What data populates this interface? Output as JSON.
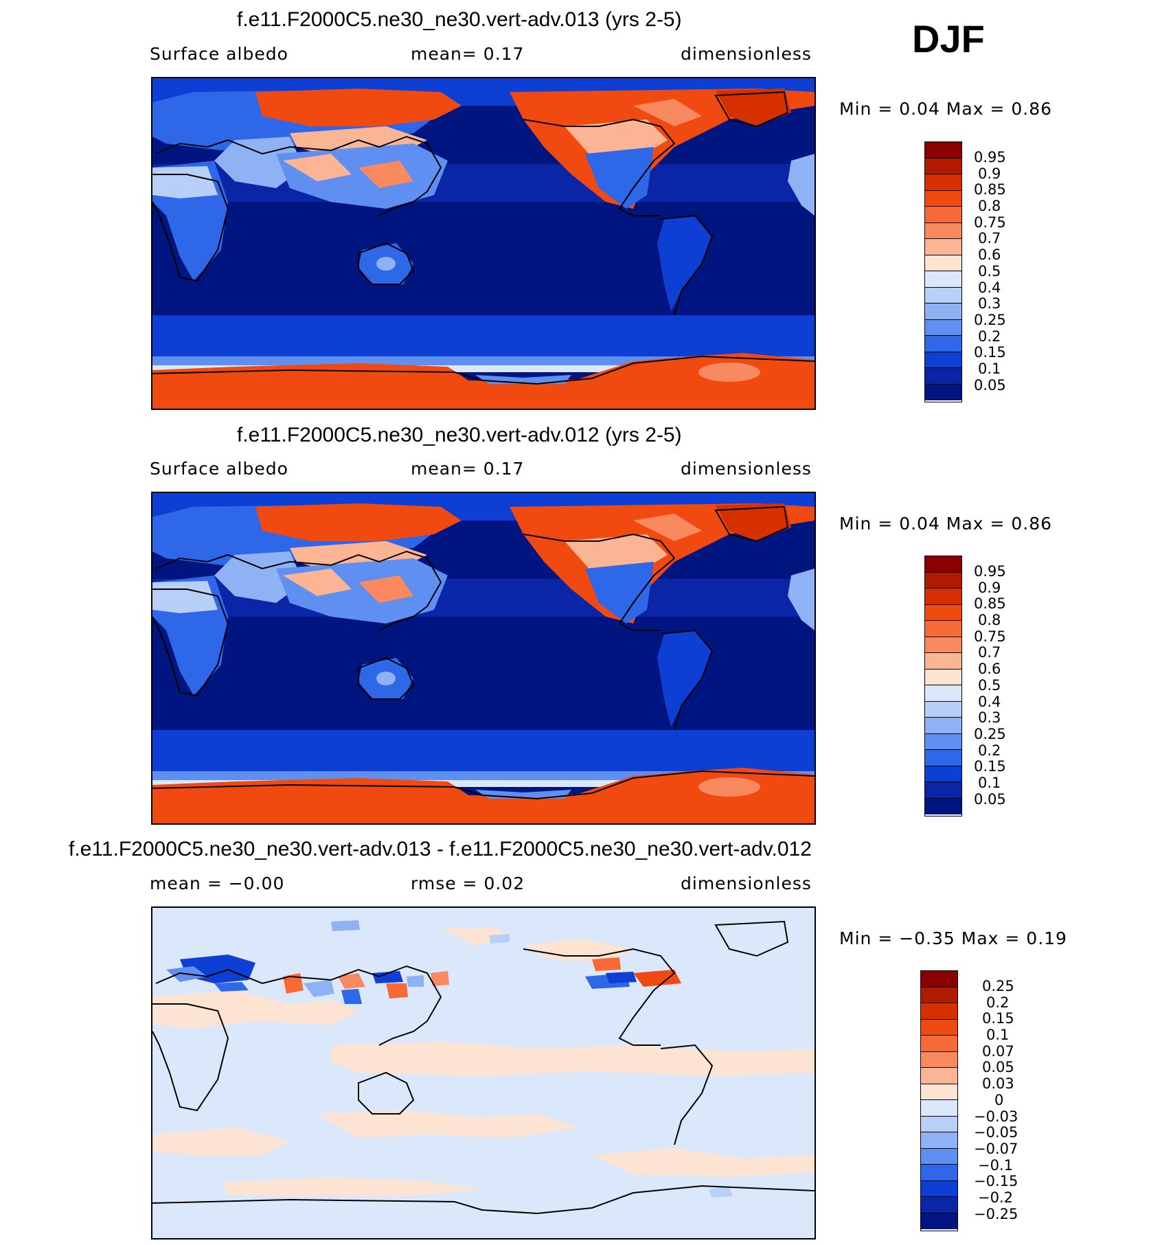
{
  "season": "DJF",
  "panels": [
    {
      "id": "panel-013",
      "title": "f.e11.F2000C5.ne30_ne30.vert-adv.013 (yrs 2-5)",
      "left_label": "Surface  albedo",
      "center_label": "mean=     0.17",
      "right_label": "dimensionless",
      "minmax": "Min  =      0.04  Max  =      0.86",
      "kind": "abs",
      "colorbar_labels": [
        "0.95",
        "0.9",
        "0.85",
        "0.8",
        "0.75",
        "0.7",
        "0.6",
        "0.5",
        "0.4",
        "0.3",
        "0.25",
        "0.2",
        "0.15",
        "0.1",
        "0.05"
      ]
    },
    {
      "id": "panel-012",
      "title": "f.e11.F2000C5.ne30_ne30.vert-adv.012 (yrs 2-5)",
      "left_label": "Surface  albedo",
      "center_label": "mean=     0.17",
      "right_label": "dimensionless",
      "minmax": "Min  =      0.04  Max  =      0.86",
      "kind": "abs",
      "colorbar_labels": [
        "0.95",
        "0.9",
        "0.85",
        "0.8",
        "0.75",
        "0.7",
        "0.6",
        "0.5",
        "0.4",
        "0.3",
        "0.25",
        "0.2",
        "0.15",
        "0.1",
        "0.05"
      ]
    },
    {
      "id": "panel-diff",
      "title": "f.e11.F2000C5.ne30_ne30.vert-adv.013 - f.e11.F2000C5.ne30_ne30.vert-adv.012",
      "left_label": "mean  =   −0.00",
      "center_label": "rmse  =     0.02",
      "right_label": "dimensionless",
      "minmax": "Min  =   −0.35  Max  =      0.19",
      "kind": "diff",
      "colorbar_labels": [
        "0.25",
        "0.2",
        "0.15",
        "0.1",
        "0.07",
        "0.05",
        "0.03",
        "0",
        "−0.03",
        "−0.05",
        "−0.07",
        "−0.1",
        "−0.15",
        "−0.2",
        "−0.25"
      ]
    }
  ],
  "colors": {
    "abs_scale": [
      "#8b0000",
      "#b01a00",
      "#d63000",
      "#f04a10",
      "#f76a38",
      "#f98a60",
      "#fbb595",
      "#fde3d2",
      "#dbe8fb",
      "#b8d0f8",
      "#8fb2f5",
      "#5f8ff0",
      "#2e68e8",
      "#0e3fd4",
      "#0a26a6",
      "#00157f"
    ],
    "diff_scale": [
      "#8b0000",
      "#b01a00",
      "#d63000",
      "#f04a10",
      "#f76a38",
      "#f98a60",
      "#fbb595",
      "#fde3d2",
      "#dbe8fb",
      "#b8d0f8",
      "#8fb2f5",
      "#5f8ff0",
      "#2e68e8",
      "#0e3fd4",
      "#0a26a6",
      "#00157f"
    ],
    "map_ocean_tropics": "#00157f",
    "map_ocean_mid": "#0e3fd4",
    "map_snow": "#f04a10",
    "diff_background": "#dbe8fb",
    "diff_positive": "#fde3d2"
  }
}
